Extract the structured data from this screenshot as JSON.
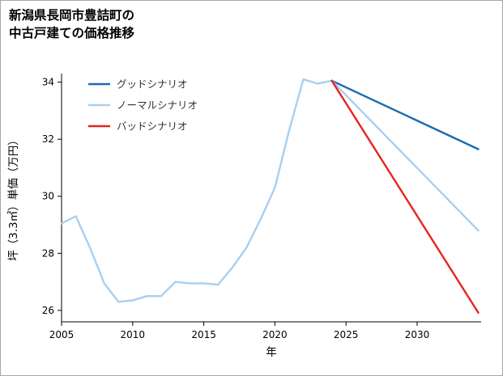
{
  "title": {
    "line1": "新潟県長岡市豊詰町の",
    "line2": "中古戸建ての価格推移"
  },
  "chart_data": {
    "type": "line",
    "title": "新潟県長岡市豊詰町の中古戸建ての価格推移",
    "xlabel": "年",
    "ylabel": "坪（3.3㎡）単価（万円）",
    "xlim": [
      2005,
      2034.5
    ],
    "ylim": [
      25.6,
      34.3
    ],
    "xticks": [
      2005,
      2010,
      2015,
      2020,
      2025,
      2030
    ],
    "yticks": [
      26,
      28,
      30,
      32,
      34
    ],
    "grid": false,
    "legend_position": "upper-left",
    "colors": {
      "good": "#1b6cb0",
      "normal": "#a9cfef",
      "bad": "#e8231f",
      "axis": "#000000",
      "legend_text": "#333333"
    },
    "series": [
      {
        "id": "historical",
        "name": "",
        "color": "#a9cfef",
        "in_legend": false,
        "x": [
          2005,
          2006,
          2007,
          2008,
          2009,
          2010,
          2011,
          2012,
          2013,
          2014,
          2015,
          2016,
          2017,
          2018,
          2019,
          2020,
          2021,
          2022,
          2023,
          2024
        ],
        "y": [
          29.05,
          29.3,
          28.2,
          26.95,
          26.3,
          26.35,
          26.5,
          26.5,
          27.0,
          26.95,
          26.95,
          26.9,
          27.5,
          28.2,
          29.2,
          30.3,
          32.3,
          34.1,
          33.95,
          34.05
        ]
      },
      {
        "id": "good",
        "name": "グッドシナリオ",
        "color": "#1b6cb0",
        "in_legend": true,
        "x": [
          2024,
          2034.3
        ],
        "y": [
          34.05,
          31.65
        ]
      },
      {
        "id": "normal",
        "name": "ノーマルシナリオ",
        "color": "#a9cfef",
        "in_legend": true,
        "x": [
          2024,
          2034.3
        ],
        "y": [
          34.05,
          28.8
        ]
      },
      {
        "id": "bad",
        "name": "バッドシナリオ",
        "color": "#e8231f",
        "in_legend": true,
        "x": [
          2024,
          2034.3
        ],
        "y": [
          34.05,
          25.92
        ]
      }
    ]
  }
}
